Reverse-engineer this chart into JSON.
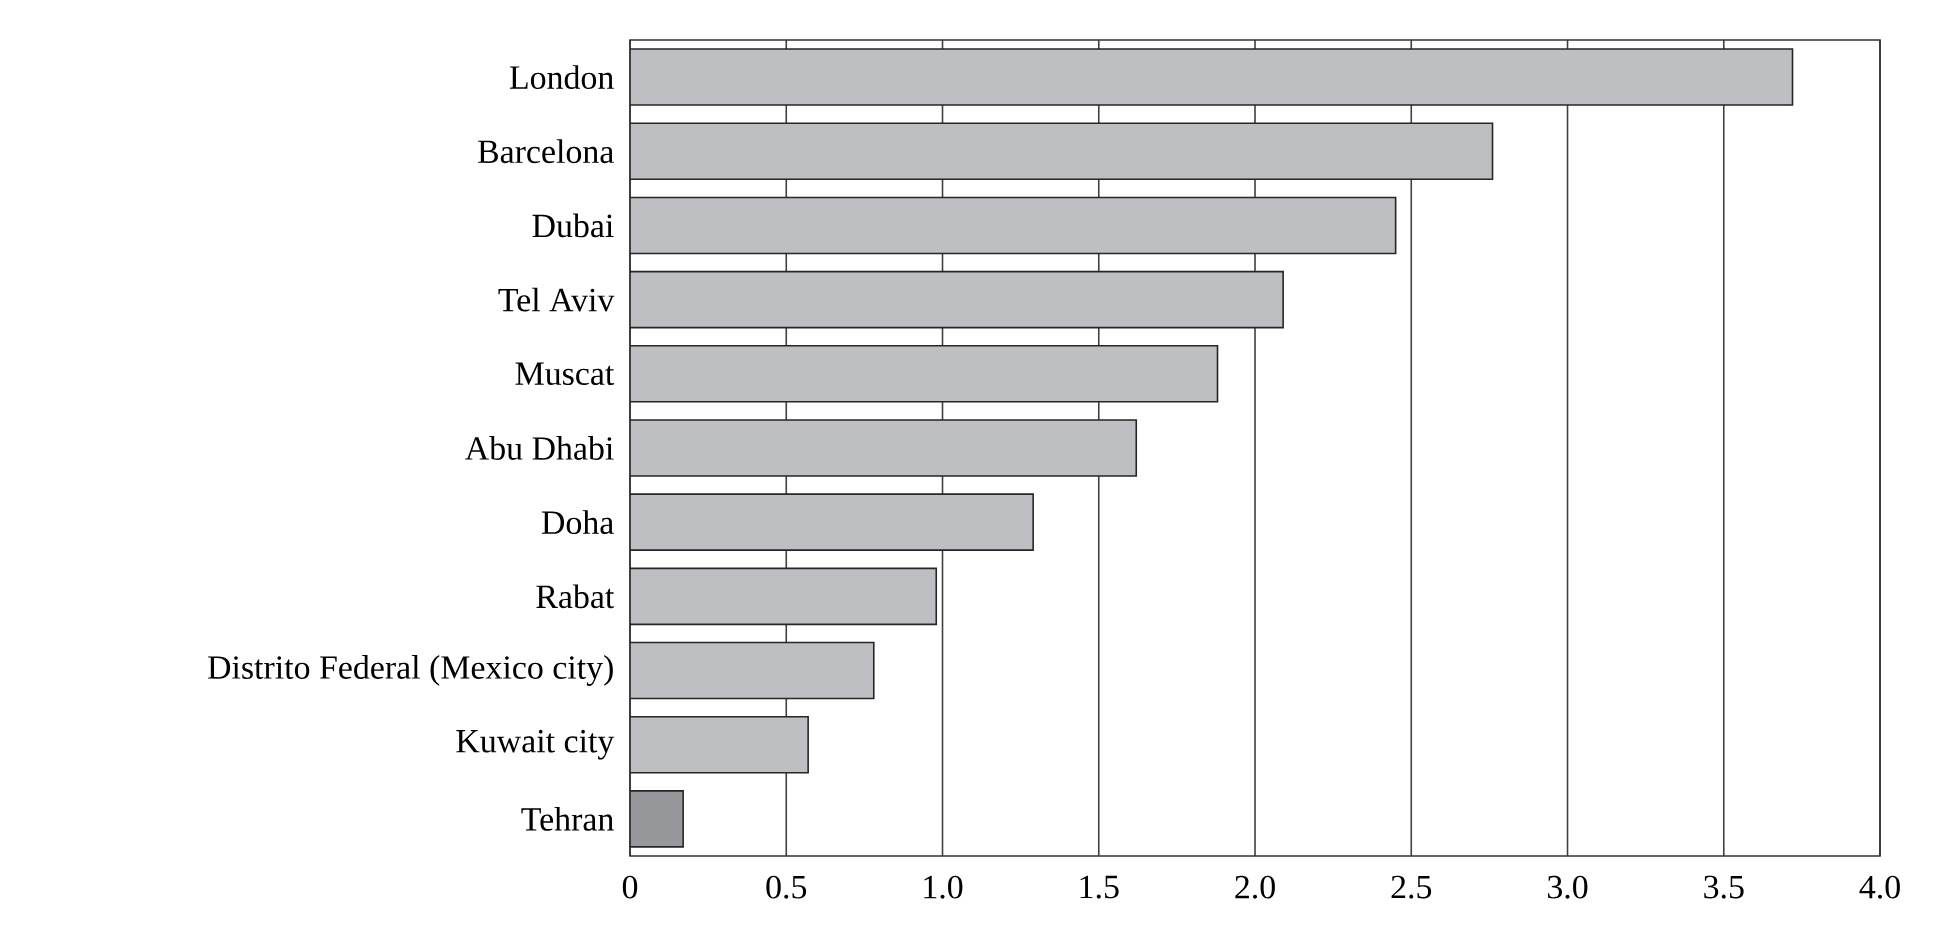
{
  "chart_data": {
    "type": "bar",
    "orientation": "horizontal",
    "categories": [
      "London",
      "Barcelona",
      "Dubai",
      "Tel Aviv",
      "Muscat",
      "Abu Dhabi",
      "Doha",
      "Rabat",
      "Distrito Federal (Mexico city)",
      "Kuwait city",
      "Tehran"
    ],
    "values": [
      3.72,
      2.76,
      2.45,
      2.09,
      1.88,
      1.62,
      1.29,
      0.98,
      0.78,
      0.57,
      0.17
    ],
    "colors": [
      "#bebfc3",
      "#bebfc3",
      "#bebfc3",
      "#bebfc3",
      "#bebfc3",
      "#bebfc3",
      "#bebfc3",
      "#bebfc3",
      "#bebfc3",
      "#bebfc3",
      "#97989b"
    ],
    "xlim": [
      0,
      4
    ],
    "xticks": [
      0,
      {
        "value": 0.5,
        "label": "0.5"
      },
      {
        "value": 1,
        "label": "1.0"
      },
      {
        "value": 1.5,
        "label": "1.5"
      },
      {
        "value": 2,
        "label": "2.0"
      },
      {
        "value": 2.5,
        "label": "2.5"
      },
      {
        "value": 3,
        "label": "3.0"
      },
      {
        "value": 3.5,
        "label": "3.5"
      },
      {
        "value": 4,
        "label": "4.0"
      }
    ],
    "grid": "x"
  }
}
